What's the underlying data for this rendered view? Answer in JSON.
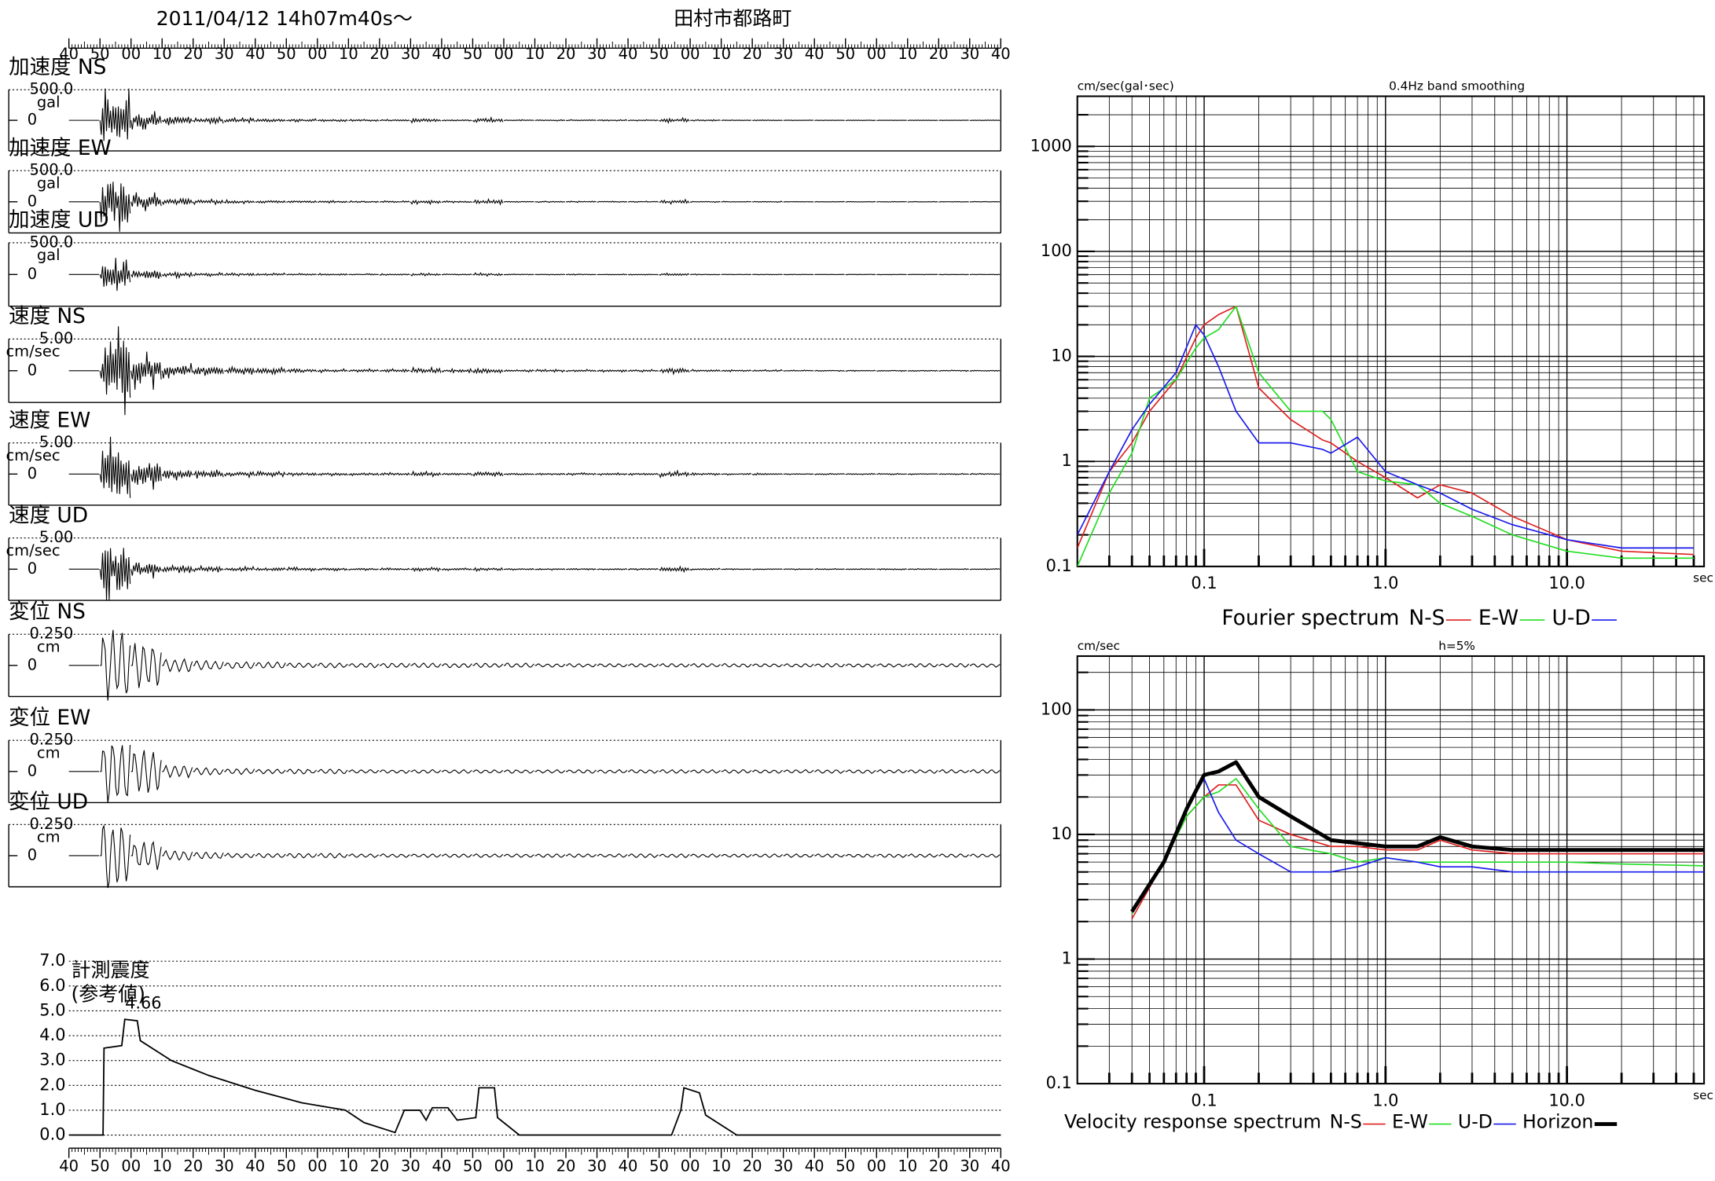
{
  "chart_data": [
    {
      "type": "waveform",
      "title": "2011/04/12  14h07m40s〜",
      "subtitle": "田村市都路町",
      "xlim": [
        0,
        300
      ],
      "xticks": [
        {
          "value": 0,
          "label": "40"
        },
        {
          "value": 10,
          "label": "50"
        },
        {
          "value": 20,
          "label": "00"
        },
        {
          "value": 30,
          "label": "10"
        },
        {
          "value": 40,
          "label": "20"
        },
        {
          "value": 50,
          "label": "30"
        },
        {
          "value": 60,
          "label": "40"
        },
        {
          "value": 70,
          "label": "50"
        },
        {
          "value": 80,
          "label": "00"
        },
        {
          "value": 90,
          "label": "10"
        },
        {
          "value": 100,
          "label": "20"
        },
        {
          "value": 110,
          "label": "30"
        },
        {
          "value": 120,
          "label": "40"
        },
        {
          "value": 130,
          "label": "50"
        },
        {
          "value": 140,
          "label": "00"
        },
        {
          "value": 150,
          "label": "10"
        },
        {
          "value": 160,
          "label": "20"
        },
        {
          "value": 170,
          "label": "30"
        },
        {
          "value": 180,
          "label": "40"
        },
        {
          "value": 190,
          "label": "50"
        },
        {
          "value": 200,
          "label": "00"
        },
        {
          "value": 210,
          "label": "10"
        },
        {
          "value": 220,
          "label": "20"
        },
        {
          "value": 230,
          "label": "30"
        },
        {
          "value": 240,
          "label": "40"
        },
        {
          "value": 250,
          "label": "50"
        },
        {
          "value": 260,
          "label": "00"
        },
        {
          "value": 270,
          "label": "10"
        },
        {
          "value": 280,
          "label": "20"
        },
        {
          "value": 290,
          "label": "30"
        },
        {
          "value": 300,
          "label": "40"
        }
      ],
      "x": [
        0,
        10,
        20,
        30,
        40,
        50,
        60,
        70,
        80,
        90,
        100,
        110,
        120,
        130,
        140,
        150,
        160,
        170,
        180,
        190,
        200,
        210,
        220,
        230,
        240,
        250,
        260,
        270,
        280,
        290
      ],
      "traces": [
        {
          "name": "加速度 NS",
          "range": {
            "value": 500,
            "label": "500.0"
          },
          "unit": "gal",
          "baseline": 0,
          "values": [
            0,
            520,
            150,
            80,
            50,
            40,
            30,
            25,
            20,
            15,
            15,
            40,
            15,
            45,
            10,
            10,
            10,
            10,
            10,
            40,
            10,
            8,
            8,
            6,
            6,
            6,
            6,
            6,
            6,
            6
          ]
        },
        {
          "name": "加速度 EW",
          "range": {
            "value": 500,
            "label": "500.0"
          },
          "unit": "gal",
          "baseline": 0,
          "values": [
            0,
            480,
            150,
            70,
            40,
            30,
            25,
            20,
            20,
            15,
            15,
            35,
            15,
            40,
            10,
            10,
            10,
            10,
            10,
            35,
            10,
            8,
            8,
            6,
            6,
            6,
            6,
            6,
            6,
            6
          ]
        },
        {
          "name": "加速度 UD",
          "range": {
            "value": 500,
            "label": "500.0"
          },
          "unit": "gal",
          "baseline": 0,
          "values": [
            0,
            380,
            100,
            50,
            30,
            25,
            20,
            15,
            15,
            12,
            12,
            20,
            12,
            25,
            8,
            8,
            8,
            8,
            8,
            20,
            8,
            6,
            6,
            5,
            5,
            5,
            5,
            5,
            5,
            5
          ]
        },
        {
          "name": "速度 NS",
          "range": {
            "value": 5,
            "label": "5.00"
          },
          "unit": "cm/sec",
          "baseline": 0,
          "values": [
            0,
            7,
            3,
            1.2,
            0.8,
            0.6,
            0.5,
            0.4,
            0.3,
            0.3,
            0.3,
            0.5,
            0.3,
            0.5,
            0.2,
            0.2,
            0.2,
            0.2,
            0.2,
            0.5,
            0.2,
            0.15,
            0.15,
            0.1,
            0.1,
            0.1,
            0.1,
            0.1,
            0.1,
            0.1
          ]
        },
        {
          "name": "速度 EW",
          "range": {
            "value": 5,
            "label": "5.00"
          },
          "unit": "cm/sec",
          "baseline": 0,
          "values": [
            0,
            6,
            2.5,
            1,
            0.7,
            0.5,
            0.4,
            0.3,
            0.3,
            0.25,
            0.25,
            0.4,
            0.25,
            0.5,
            0.2,
            0.2,
            0.2,
            0.2,
            0.2,
            0.5,
            0.2,
            0.15,
            0.15,
            0.1,
            0.1,
            0.1,
            0.1,
            0.1,
            0.1,
            0.1
          ]
        },
        {
          "name": "速度 UD",
          "range": {
            "value": 5,
            "label": "5.00"
          },
          "unit": "cm/sec",
          "baseline": 0,
          "values": [
            0,
            5,
            1.5,
            0.6,
            0.5,
            0.4,
            0.3,
            0.3,
            0.25,
            0.2,
            0.2,
            0.3,
            0.2,
            0.3,
            0.15,
            0.15,
            0.15,
            0.15,
            0.15,
            0.4,
            0.15,
            0.1,
            0.1,
            0.1,
            0.1,
            0.1,
            0.1,
            0.1,
            0.1,
            0.1
          ]
        },
        {
          "name": "変位 NS",
          "range": {
            "value": 0.25,
            "label": "0.250"
          },
          "unit": "cm",
          "baseline": 0,
          "values": [
            0,
            0.3,
            0.2,
            0.06,
            0.04,
            0.03,
            0.03,
            0.02,
            0.02,
            0.02,
            0.02,
            0.02,
            0.02,
            0.02,
            0.02,
            0.015,
            0.015,
            0.015,
            0.015,
            0.015,
            0.015,
            0.015,
            0.015,
            0.015,
            0.015,
            0.015,
            0.015,
            0.015,
            0.015,
            0.015
          ]
        },
        {
          "name": "変位 EW",
          "range": {
            "value": 0.25,
            "label": "0.250"
          },
          "unit": "cm",
          "baseline": 0,
          "values": [
            0,
            0.27,
            0.18,
            0.05,
            0.03,
            0.025,
            0.02,
            0.02,
            0.02,
            0.015,
            0.015,
            0.015,
            0.015,
            0.015,
            0.015,
            0.015,
            0.015,
            0.015,
            0.015,
            0.015,
            0.015,
            0.015,
            0.015,
            0.015,
            0.015,
            0.015,
            0.015,
            0.015,
            0.015,
            0.015
          ]
        },
        {
          "name": "変位 UD",
          "range": {
            "value": 0.25,
            "label": "0.250"
          },
          "unit": "cm",
          "baseline": 0,
          "values": [
            0,
            0.3,
            0.12,
            0.04,
            0.03,
            0.02,
            0.02,
            0.02,
            0.02,
            0.015,
            0.015,
            0.015,
            0.015,
            0.015,
            0.015,
            0.015,
            0.015,
            0.015,
            0.015,
            0.015,
            0.015,
            0.015,
            0.015,
            0.015,
            0.015,
            0.015,
            0.015,
            0.015,
            0.015,
            0.015
          ]
        }
      ]
    },
    {
      "type": "line",
      "y_label": [
        "計測震度",
        "(参考値)"
      ],
      "peak": 4.66,
      "xlim": [
        0,
        300
      ],
      "ylim": [
        0,
        7
      ],
      "yticks": [
        {
          "value": 0,
          "label": "0.0"
        },
        {
          "value": 1,
          "label": "1.0"
        },
        {
          "value": 2,
          "label": "2.0"
        },
        {
          "value": 3,
          "label": "3.0"
        },
        {
          "value": 4,
          "label": "4.0"
        },
        {
          "value": 5,
          "label": "5.0"
        },
        {
          "value": 6,
          "label": "6.0"
        },
        {
          "value": 7,
          "label": "7.0"
        }
      ],
      "xticks": [
        {
          "value": 0,
          "label": "40"
        },
        {
          "value": 10,
          "label": "50"
        },
        {
          "value": 20,
          "label": "00"
        },
        {
          "value": 30,
          "label": "10"
        },
        {
          "value": 40,
          "label": "20"
        },
        {
          "value": 50,
          "label": "30"
        },
        {
          "value": 60,
          "label": "40"
        },
        {
          "value": 70,
          "label": "50"
        },
        {
          "value": 80,
          "label": "00"
        },
        {
          "value": 90,
          "label": "10"
        },
        {
          "value": 100,
          "label": "20"
        },
        {
          "value": 110,
          "label": "30"
        },
        {
          "value": 120,
          "label": "40"
        },
        {
          "value": 130,
          "label": "50"
        },
        {
          "value": 140,
          "label": "00"
        },
        {
          "value": 150,
          "label": "10"
        },
        {
          "value": 160,
          "label": "20"
        },
        {
          "value": 170,
          "label": "30"
        },
        {
          "value": 180,
          "label": "40"
        },
        {
          "value": 190,
          "label": "50"
        },
        {
          "value": 200,
          "label": "00"
        },
        {
          "value": 210,
          "label": "10"
        },
        {
          "value": 220,
          "label": "20"
        },
        {
          "value": 230,
          "label": "30"
        },
        {
          "value": 240,
          "label": "40"
        },
        {
          "value": 250,
          "label": "50"
        },
        {
          "value": 260,
          "label": "00"
        },
        {
          "value": 270,
          "label": "10"
        },
        {
          "value": 280,
          "label": "20"
        },
        {
          "value": 290,
          "label": "30"
        },
        {
          "value": 300,
          "label": "40"
        }
      ],
      "x": [
        0,
        11,
        11.3,
        17,
        18,
        22,
        23,
        33,
        45,
        60,
        75,
        89,
        95,
        105,
        108,
        113,
        115,
        117,
        122,
        125,
        131,
        132,
        137,
        138,
        145,
        194,
        197,
        198,
        203,
        205,
        215,
        300
      ],
      "values": [
        0,
        0,
        3.5,
        3.6,
        4.66,
        4.6,
        3.8,
        3.0,
        2.4,
        1.8,
        1.3,
        1.0,
        0.5,
        0.1,
        1.0,
        1.0,
        0.6,
        1.1,
        1.1,
        0.6,
        0.7,
        1.9,
        1.9,
        0.7,
        0,
        0,
        1.0,
        1.9,
        1.7,
        0.8,
        0,
        0
      ],
      "color": "#000000"
    },
    {
      "type": "spectrum",
      "title": "Fourier spectrum",
      "y_label": "cm/sec(gal･sec)",
      "subtitle": "0.4Hz band smoothing",
      "x_label": "sec",
      "log_x": true,
      "log_y": true,
      "grid": true,
      "xlim": [
        0.02,
        57
      ],
      "ylim": [
        0.1,
        3000
      ],
      "xticks": [
        0.1,
        {
          "value": 1,
          "label": "1.0"
        },
        {
          "value": 10,
          "label": "10.0"
        }
      ],
      "yticks": [
        0.1,
        1,
        10,
        100,
        1000
      ],
      "x": [
        0.02,
        0.03,
        0.04,
        0.05,
        0.07,
        0.09,
        0.1,
        0.12,
        0.15,
        0.2,
        0.3,
        0.45,
        0.5,
        0.7,
        1,
        1.5,
        2,
        3,
        5,
        10,
        20,
        50
      ],
      "series": [
        {
          "name": "N-S",
          "color": "#e02020",
          "line_width": 1.2,
          "values": [
            0.15,
            0.8,
            1.5,
            3,
            6,
            15,
            20,
            25,
            30,
            5,
            2.5,
            1.6,
            1.5,
            1.0,
            0.7,
            0.45,
            0.6,
            0.5,
            0.3,
            0.18,
            0.14,
            0.13
          ]
        },
        {
          "name": "E-W",
          "color": "#22dd22",
          "line_width": 1.2,
          "values": [
            0.1,
            0.5,
            1.2,
            4,
            6,
            12,
            15,
            18,
            30,
            7,
            3,
            3,
            2.5,
            0.8,
            0.65,
            0.6,
            0.4,
            0.3,
            0.2,
            0.14,
            0.12,
            0.12
          ]
        },
        {
          "name": "U-D",
          "color": "#1a1aee",
          "line_width": 1.2,
          "values": [
            0.2,
            0.8,
            2,
            3.5,
            7,
            20,
            16,
            8,
            3,
            1.5,
            1.5,
            1.3,
            1.2,
            1.7,
            0.8,
            0.6,
            0.5,
            0.35,
            0.25,
            0.18,
            0.15,
            0.15
          ]
        }
      ]
    },
    {
      "type": "spectrum",
      "title": "Velocity response spectrum",
      "y_label": "cm/sec",
      "subtitle": "h=5%",
      "x_label": "sec",
      "log_x": true,
      "log_y": true,
      "grid": true,
      "xlim": [
        0.02,
        57
      ],
      "ylim": [
        0.1,
        270
      ],
      "xticks": [
        0.1,
        {
          "value": 1,
          "label": "1.0"
        },
        {
          "value": 10,
          "label": "10.0"
        }
      ],
      "yticks": [
        0.1,
        1,
        10,
        100
      ],
      "x": [
        0.04,
        0.06,
        0.08,
        0.1,
        0.12,
        0.15,
        0.2,
        0.3,
        0.5,
        0.7,
        1,
        1.5,
        2,
        3,
        5,
        10,
        20,
        57
      ],
      "series": [
        {
          "name": "N-S",
          "color": "#e02020",
          "line_width": 1.2,
          "values": [
            2.1,
            6,
            14,
            20,
            25,
            25,
            13,
            10,
            8,
            8,
            7.5,
            7.5,
            9,
            7.5,
            7,
            7,
            7,
            7
          ]
        },
        {
          "name": "E-W",
          "color": "#22dd22",
          "line_width": 1.2,
          "values": [
            2.3,
            6,
            14,
            20,
            22,
            28,
            16,
            8,
            7,
            6,
            6.5,
            6,
            6,
            6,
            6,
            6,
            5.8,
            5.6
          ]
        },
        {
          "name": "U-D",
          "color": "#1a1aee",
          "line_width": 1.2,
          "values": [
            2.4,
            6,
            16,
            28,
            15,
            9,
            7,
            5,
            5,
            5.5,
            6.5,
            6,
            5.5,
            5.5,
            5,
            5,
            5,
            5
          ]
        },
        {
          "name": "Horizon",
          "color": "#000000",
          "line_width": 3.5,
          "values": [
            2.4,
            6,
            16,
            30,
            32,
            38,
            20,
            14,
            9,
            8.5,
            8,
            8,
            9.5,
            8,
            7.5,
            7.5,
            7.5,
            7.5
          ]
        }
      ]
    }
  ]
}
